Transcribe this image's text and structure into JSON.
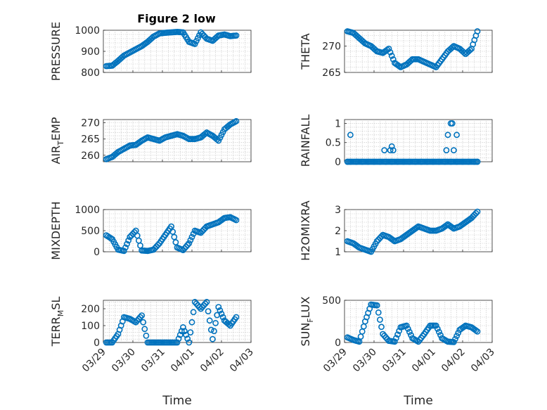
{
  "figure_title": "Figure 2 low",
  "marker_color": "#0072BD",
  "chart_data": [
    {
      "type": "scatter",
      "title": "Figure 2 low",
      "ylabel": "PRESSURE",
      "xlabel": "",
      "ylim": [
        800,
        1000
      ],
      "yticks": [
        800,
        900,
        1000
      ],
      "ytick_labels": [
        "800",
        "900",
        "1000"
      ],
      "xlim": [
        0,
        5
      ],
      "xticks": [
        0,
        1,
        2,
        3,
        4,
        5
      ],
      "xtick_labels": [],
      "grid": true,
      "minor_grid": true,
      "x": [
        0.1,
        0.3,
        0.5,
        0.7,
        0.9,
        1.1,
        1.3,
        1.5,
        1.7,
        1.9,
        2.1,
        2.3,
        2.5,
        2.7,
        2.9,
        3.1,
        3.3,
        3.5,
        3.7,
        3.9,
        4.1,
        4.3,
        4.5
      ],
      "y": [
        830,
        832,
        855,
        880,
        895,
        910,
        925,
        945,
        970,
        985,
        988,
        990,
        992,
        990,
        945,
        935,
        990,
        960,
        950,
        975,
        980,
        972,
        975
      ]
    },
    {
      "type": "scatter",
      "title": "",
      "ylabel": "THETA",
      "xlabel": "",
      "ylim": [
        265,
        273
      ],
      "yticks": [
        265,
        270
      ],
      "ytick_labels": [
        "265",
        "270"
      ],
      "xlim": [
        0,
        5
      ],
      "xticks": [
        0,
        1,
        2,
        3,
        4,
        5
      ],
      "xtick_labels": [],
      "grid": true,
      "minor_grid": true,
      "x": [
        0.1,
        0.3,
        0.5,
        0.7,
        0.9,
        1.1,
        1.3,
        1.5,
        1.7,
        1.9,
        2.1,
        2.3,
        2.5,
        2.7,
        2.9,
        3.1,
        3.3,
        3.5,
        3.7,
        3.9,
        4.1,
        4.3,
        4.5
      ],
      "y": [
        272.8,
        272.5,
        271.5,
        270.5,
        270.0,
        269.0,
        268.7,
        269.5,
        266.8,
        266.0,
        266.5,
        267.5,
        267.5,
        267.0,
        266.5,
        266.0,
        267.5,
        269.0,
        270.0,
        269.5,
        268.5,
        269.5,
        272.8
      ]
    },
    {
      "type": "scatter",
      "title": "",
      "ylabel": "AIR_TEMP",
      "ylabel_main": "AIR",
      "ylabel_sub": "T",
      "ylabel_tail": "EMP",
      "xlabel": "",
      "ylim": [
        258,
        271
      ],
      "yticks": [
        260,
        265,
        270
      ],
      "ytick_labels": [
        "260",
        "265",
        "270"
      ],
      "xlim": [
        0,
        5
      ],
      "xticks": [
        0,
        1,
        2,
        3,
        4,
        5
      ],
      "xtick_labels": [],
      "grid": true,
      "minor_grid": true,
      "x": [
        0.1,
        0.3,
        0.5,
        0.7,
        0.9,
        1.1,
        1.3,
        1.5,
        1.7,
        1.9,
        2.1,
        2.3,
        2.5,
        2.7,
        2.9,
        3.1,
        3.3,
        3.5,
        3.7,
        3.9,
        4.1,
        4.3,
        4.5
      ],
      "y": [
        258.8,
        259.5,
        261.0,
        262.0,
        263.0,
        263.2,
        264.5,
        265.5,
        265.0,
        264.5,
        265.5,
        266.0,
        266.5,
        266.0,
        265.0,
        265.0,
        265.5,
        267.0,
        266.0,
        264.5,
        268.0,
        269.5,
        270.5
      ]
    },
    {
      "type": "scatter",
      "title": "",
      "ylabel": "RAINFALL",
      "xlabel": "",
      "ylim": [
        0,
        1.1
      ],
      "yticks": [
        0,
        0.5,
        1
      ],
      "ytick_labels": [
        "0",
        "0.5",
        "1"
      ],
      "xlim": [
        0,
        5
      ],
      "xticks": [
        0,
        1,
        2,
        3,
        4,
        5
      ],
      "xtick_labels": [],
      "grid": true,
      "minor_grid": true,
      "x": [
        0.1,
        0.2,
        0.4,
        0.6,
        0.8,
        1.0,
        1.2,
        1.4,
        1.6,
        1.8,
        2.0,
        2.2,
        2.4,
        2.6,
        2.8,
        3.0,
        3.2,
        3.4,
        3.6,
        3.8,
        4.0,
        4.2,
        4.4,
        4.5,
        0.2,
        1.35,
        1.55,
        1.6,
        1.65,
        3.45,
        3.5,
        3.6,
        3.65,
        3.7,
        3.8
      ],
      "y": [
        0,
        0,
        0,
        0,
        0,
        0,
        0,
        0,
        0,
        0,
        0,
        0,
        0,
        0,
        0,
        0,
        0,
        0,
        0,
        0,
        0,
        0,
        0,
        0,
        0.7,
        0.3,
        0.3,
        0.4,
        0.3,
        0.3,
        0.7,
        1.0,
        1.0,
        0.3,
        0.7
      ]
    },
    {
      "type": "scatter",
      "title": "",
      "ylabel": "MIXDEPTH",
      "xlabel": "",
      "ylim": [
        0,
        1000
      ],
      "yticks": [
        0,
        500,
        1000
      ],
      "ytick_labels": [
        "0",
        "500",
        "1000"
      ],
      "xlim": [
        0,
        5
      ],
      "xticks": [
        0,
        1,
        2,
        3,
        4,
        5
      ],
      "xtick_labels": [],
      "grid": true,
      "minor_grid": true,
      "x": [
        0.1,
        0.3,
        0.5,
        0.7,
        0.9,
        1.1,
        1.3,
        1.5,
        1.7,
        1.9,
        2.1,
        2.3,
        2.5,
        2.7,
        2.9,
        3.1,
        3.3,
        3.5,
        3.7,
        3.9,
        4.1,
        4.3,
        4.5
      ],
      "y": [
        390,
        300,
        50,
        20,
        350,
        500,
        30,
        20,
        50,
        200,
        400,
        600,
        100,
        40,
        200,
        500,
        450,
        600,
        650,
        700,
        800,
        820,
        750
      ]
    },
    {
      "type": "scatter",
      "title": "",
      "ylabel": "H2OMIXRA",
      "xlabel": "",
      "ylim": [
        1,
        3
      ],
      "yticks": [
        1,
        2,
        3
      ],
      "ytick_labels": [
        "1",
        "2",
        "3"
      ],
      "xlim": [
        0,
        5
      ],
      "xticks": [
        0,
        1,
        2,
        3,
        4,
        5
      ],
      "xtick_labels": [],
      "grid": true,
      "minor_grid": true,
      "x": [
        0.1,
        0.3,
        0.5,
        0.7,
        0.9,
        1.1,
        1.3,
        1.5,
        1.7,
        1.9,
        2.1,
        2.3,
        2.5,
        2.7,
        2.9,
        3.1,
        3.3,
        3.5,
        3.7,
        3.9,
        4.1,
        4.3,
        4.5
      ],
      "y": [
        1.5,
        1.4,
        1.2,
        1.1,
        1.0,
        1.5,
        1.8,
        1.7,
        1.5,
        1.6,
        1.8,
        2.0,
        2.2,
        2.1,
        2.0,
        2.0,
        2.1,
        2.3,
        2.1,
        2.2,
        2.4,
        2.6,
        2.9
      ]
    },
    {
      "type": "scatter",
      "title": "",
      "ylabel": "TERR_MSL",
      "ylabel_main": "TERR",
      "ylabel_sub": "M",
      "ylabel_tail": "SL",
      "xlabel": "Time",
      "ylim": [
        0,
        250
      ],
      "yticks": [
        0,
        100,
        200
      ],
      "ytick_labels": [
        "0",
        "100",
        "200"
      ],
      "xlim": [
        0,
        5
      ],
      "xticks": [
        0,
        1,
        2,
        3,
        4,
        5
      ],
      "xtick_labels": [
        "03/29",
        "03/30",
        "03/31",
        "04/01",
        "04/02",
        "04/03"
      ],
      "grid": true,
      "minor_grid": true,
      "x": [
        0.1,
        0.3,
        0.5,
        0.7,
        0.9,
        1.1,
        1.3,
        1.5,
        1.7,
        1.9,
        2.1,
        2.3,
        2.5,
        2.7,
        2.9,
        3.1,
        3.3,
        3.5,
        3.7,
        3.9,
        4.1,
        4.3,
        4.5
      ],
      "y": [
        0,
        0,
        50,
        150,
        140,
        120,
        160,
        0,
        0,
        0,
        0,
        0,
        0,
        90,
        0,
        240,
        200,
        240,
        20,
        210,
        130,
        100,
        150
      ]
    },
    {
      "type": "scatter",
      "title": "",
      "ylabel": "SUN_FLUX",
      "ylabel_main": "SUN",
      "ylabel_sub": "F",
      "ylabel_tail": "LUX",
      "xlabel": "Time",
      "ylim": [
        0,
        500
      ],
      "yticks": [
        0,
        500
      ],
      "ytick_labels": [
        "0",
        "500"
      ],
      "xlim": [
        0,
        5
      ],
      "xticks": [
        0,
        1,
        2,
        3,
        4,
        5
      ],
      "xtick_labels": [
        "03/29",
        "03/30",
        "03/31",
        "04/01",
        "04/02",
        "04/03"
      ],
      "grid": true,
      "minor_grid": true,
      "x": [
        0.1,
        0.3,
        0.5,
        0.7,
        0.9,
        1.1,
        1.3,
        1.5,
        1.7,
        1.9,
        2.1,
        2.3,
        2.5,
        2.7,
        2.9,
        3.1,
        3.3,
        3.5,
        3.7,
        3.9,
        4.1,
        4.3,
        4.5
      ],
      "y": [
        60,
        30,
        10,
        250,
        450,
        440,
        100,
        20,
        10,
        180,
        200,
        50,
        10,
        100,
        200,
        200,
        50,
        10,
        5,
        150,
        200,
        180,
        130
      ]
    }
  ]
}
